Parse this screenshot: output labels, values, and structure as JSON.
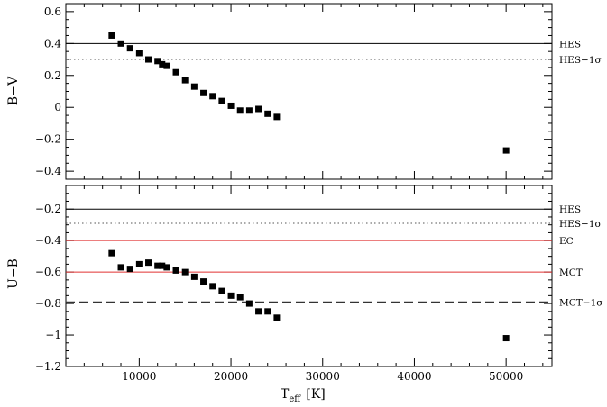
{
  "chart_data": [
    {
      "type": "scatter",
      "panel": "top",
      "title": "",
      "xlabel": "",
      "ylabel": "B−V",
      "xlim": [
        2000,
        55000
      ],
      "ylim": [
        -0.45,
        0.65
      ],
      "grid": false,
      "x_ticks": [
        10000,
        20000,
        30000,
        40000,
        50000
      ],
      "x_tick_labels_shown": false,
      "y_ticks": [
        0.6,
        0.4,
        0.2,
        0,
        -0.2,
        -0.4
      ],
      "y_tick_labels": [
        "0.6",
        "0.4",
        "0.2",
        "0",
        "−0.2",
        "−0.4"
      ],
      "reference_lines": [
        {
          "label": "HES",
          "y": 0.4,
          "style": "solid",
          "color": "#000000"
        },
        {
          "label": "HES−1σ",
          "y": 0.3,
          "style": "dotted",
          "color": "#555555"
        }
      ],
      "series": [
        {
          "marker": "square",
          "color": "#000000",
          "x": [
            7000,
            8000,
            9000,
            10000,
            11000,
            12000,
            12500,
            13000,
            14000,
            15000,
            16000,
            17000,
            18000,
            19000,
            20000,
            21000,
            22000,
            23000,
            24000,
            25000,
            50000
          ],
          "y": [
            0.45,
            0.4,
            0.37,
            0.34,
            0.3,
            0.29,
            0.27,
            0.26,
            0.22,
            0.17,
            0.13,
            0.09,
            0.07,
            0.04,
            0.01,
            -0.02,
            -0.02,
            -0.01,
            -0.04,
            -0.06,
            -0.27
          ]
        }
      ]
    },
    {
      "type": "scatter",
      "panel": "bottom",
      "title": "",
      "xlabel": "T",
      "xlabel_subscript": "eff",
      "xlabel_unit": "[K]",
      "ylabel": "U−B",
      "xlim": [
        2000,
        55000
      ],
      "ylim": [
        -1.2,
        -0.05
      ],
      "grid": false,
      "x_ticks": [
        10000,
        20000,
        30000,
        40000,
        50000
      ],
      "x_tick_labels": [
        "10000",
        "20000",
        "30000",
        "40000",
        "50000"
      ],
      "y_ticks": [
        -0.2,
        -0.4,
        -0.6,
        -0.8,
        -1.0,
        -1.2
      ],
      "y_tick_labels": [
        "−0.2",
        "−0.4",
        "−0.6",
        "−0.8",
        "−1",
        "−1.2"
      ],
      "reference_lines": [
        {
          "label": "HES",
          "y": -0.2,
          "style": "solid",
          "color": "#000000"
        },
        {
          "label": "HES−1σ",
          "y": -0.29,
          "style": "dotted",
          "color": "#555555"
        },
        {
          "label": "EC",
          "y": -0.4,
          "style": "solid",
          "color": "#e03030"
        },
        {
          "label": "MCT",
          "y": -0.6,
          "style": "solid",
          "color": "#e03030"
        },
        {
          "label": "MCT−1σ",
          "y": -0.79,
          "style": "dashed",
          "color": "#333333"
        }
      ],
      "series": [
        {
          "marker": "square",
          "color": "#000000",
          "x": [
            7000,
            8000,
            9000,
            10000,
            11000,
            12000,
            12500,
            13000,
            14000,
            15000,
            16000,
            17000,
            18000,
            19000,
            20000,
            21000,
            22000,
            23000,
            24000,
            25000,
            50000
          ],
          "y": [
            -0.48,
            -0.57,
            -0.58,
            -0.55,
            -0.54,
            -0.56,
            -0.56,
            -0.57,
            -0.59,
            -0.6,
            -0.63,
            -0.66,
            -0.69,
            -0.72,
            -0.75,
            -0.76,
            -0.8,
            -0.85,
            -0.85,
            -0.89,
            -1.02
          ]
        }
      ]
    }
  ]
}
